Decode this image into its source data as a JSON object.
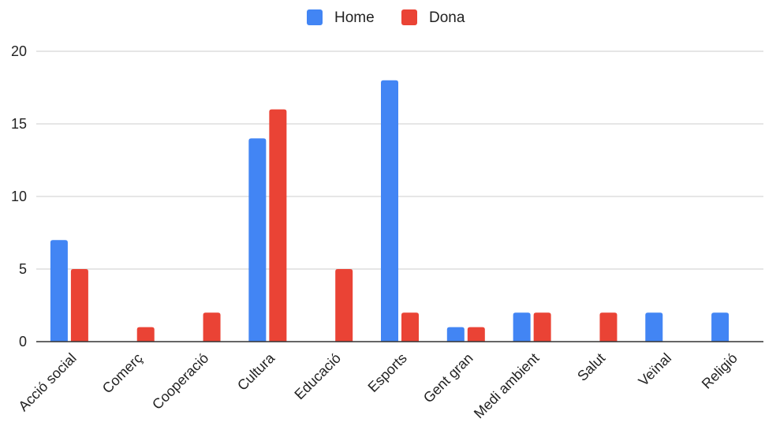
{
  "chart_data": {
    "type": "bar",
    "categories": [
      "Acció social",
      "Comerç",
      "Cooperació",
      "Cultura",
      "Educació",
      "Esports",
      "Gent gran",
      "Medi ambient",
      "Salut",
      "Veïnal",
      "Religió"
    ],
    "series": [
      {
        "name": "Home",
        "color": "#4285f4",
        "values": [
          7,
          0,
          0,
          14,
          0,
          18,
          1,
          2,
          0,
          2,
          2
        ]
      },
      {
        "name": "Dona",
        "color": "#ea4335",
        "values": [
          5,
          1,
          2,
          16,
          5,
          2,
          1,
          2,
          2,
          0,
          0
        ]
      }
    ],
    "ylim": [
      0,
      20
    ],
    "yticks": [
      0,
      5,
      10,
      15,
      20
    ],
    "legend_position": "top",
    "grid": true
  }
}
